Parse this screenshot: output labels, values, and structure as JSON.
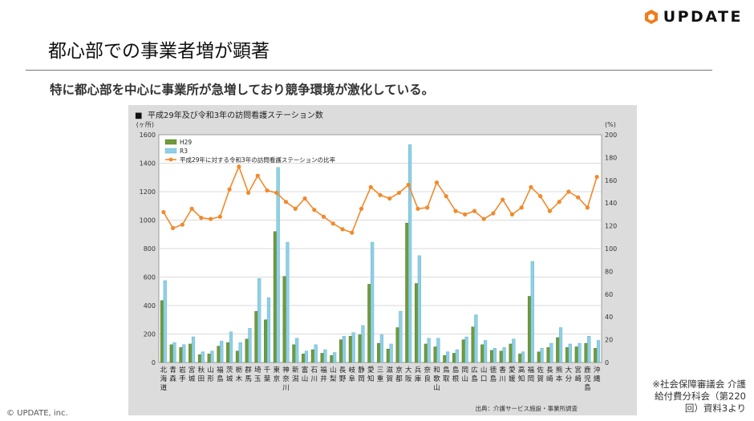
{
  "header": {
    "logo_text": "UPDATE",
    "page_title": "都心部での事業者増が顕著",
    "subtitle": "特に都心部を中心に事業所が急増しており競争環境が激化している。"
  },
  "footer": {
    "note": "※社会保障審議会 介護給付費分科会（第220回）資料3より",
    "copyright": "© UPDATE, inc."
  },
  "colors": {
    "h29": "#6f9a3a",
    "r3": "#8fd0e6",
    "ratio": "#f08a2c",
    "logo": "#f07c1c"
  },
  "chart_data": {
    "type": "bar",
    "title": "平成29年及び令和3年の訪問看護ステーション数",
    "title_marker": "■",
    "ylabel_left": "(ヶ所)",
    "ylabel_right": "(%)",
    "ylim_left": [
      0,
      1600
    ],
    "ylim_right": [
      0,
      200
    ],
    "yticks_left": [
      0,
      200,
      400,
      600,
      800,
      1000,
      1200,
      1400,
      1600
    ],
    "yticks_right": [
      0,
      20,
      40,
      60,
      80,
      100,
      120,
      140,
      160,
      180,
      200
    ],
    "legend_position": "top-left",
    "source": "出典：介護サービス施設・事業所調査",
    "categories": [
      "北海道",
      "青森",
      "岩手",
      "宮城",
      "秋田",
      "山形",
      "福島",
      "茨城",
      "栃木",
      "群馬",
      "埼玉",
      "千葉",
      "東京",
      "神奈川",
      "新潟",
      "富山",
      "石川",
      "福井",
      "山梨",
      "長野",
      "岐阜",
      "静岡",
      "愛知",
      "三重",
      "滋賀",
      "京都",
      "大阪",
      "兵庫",
      "奈良",
      "和歌山",
      "鳥取",
      "島根",
      "岡山",
      "広島",
      "山口",
      "徳島",
      "香川",
      "愛媛",
      "高知",
      "福岡",
      "佐賀",
      "長崎",
      "熊本",
      "大分",
      "宮崎",
      "鹿児島",
      "沖縄"
    ],
    "series": [
      {
        "name": "H29",
        "axis": "left",
        "values": [
          435,
          125,
          105,
          130,
          55,
          60,
          115,
          140,
          80,
          165,
          360,
          300,
          920,
          605,
          125,
          60,
          90,
          65,
          50,
          160,
          185,
          195,
          550,
          135,
          95,
          245,
          980,
          555,
          130,
          110,
          50,
          65,
          160,
          250,
          125,
          85,
          80,
          130,
          60,
          465,
          75,
          105,
          175,
          105,
          110,
          135,
          100
        ]
      },
      {
        "name": "R3",
        "axis": "left",
        "values": [
          575,
          140,
          125,
          180,
          75,
          80,
          150,
          215,
          140,
          240,
          590,
          455,
          1370,
          845,
          170,
          80,
          125,
          90,
          70,
          185,
          210,
          260,
          845,
          195,
          130,
          360,
          1530,
          750,
          170,
          170,
          75,
          90,
          180,
          335,
          155,
          100,
          105,
          165,
          75,
          710,
          100,
          135,
          245,
          130,
          135,
          185,
          155
        ]
      },
      {
        "name": "平成29年に対する令和3年の訪問看護ステーションの比率",
        "axis": "right",
        "values": [
          132,
          118,
          121,
          135,
          127,
          126,
          128,
          152,
          172,
          149,
          164,
          151,
          149,
          141,
          135,
          144,
          134,
          128,
          122,
          117,
          114,
          135,
          154,
          147,
          144,
          149,
          156,
          135,
          136,
          158,
          146,
          133,
          130,
          133,
          126,
          131,
          143,
          130,
          136,
          154,
          146,
          133,
          141,
          150,
          145,
          136,
          163
        ]
      }
    ]
  }
}
